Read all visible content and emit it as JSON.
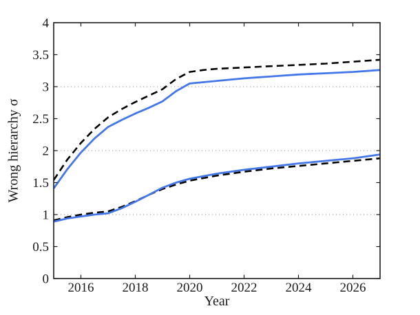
{
  "colors": {
    "background": "#ffffff",
    "axis": "#1a1a1a",
    "grid": "#a9a9a9",
    "line_blue": "#4377e8",
    "line_black": "#000000",
    "text": "#1a1a1a"
  },
  "chart_data": {
    "type": "line",
    "title": "",
    "xlabel": "Year",
    "ylabel": "Wrong hierarchy σ",
    "xlim": [
      2015,
      2027
    ],
    "ylim": [
      0,
      4
    ],
    "xticks": [
      2016,
      2018,
      2020,
      2022,
      2024,
      2026
    ],
    "yticks": [
      0,
      0.5,
      1,
      1.5,
      2,
      2.5,
      3,
      3.5,
      4
    ],
    "grid_y": [
      1,
      2,
      3
    ],
    "grid_style": "dotted",
    "legend": "none",
    "series": [
      {
        "name": "upper-dashed-black",
        "color": "#000000",
        "dash": true,
        "points": [
          [
            2015,
            1.54
          ],
          [
            2015.5,
            1.86
          ],
          [
            2016,
            2.12
          ],
          [
            2016.5,
            2.34
          ],
          [
            2017,
            2.52
          ],
          [
            2017.5,
            2.65
          ],
          [
            2018,
            2.76
          ],
          [
            2018.5,
            2.86
          ],
          [
            2019,
            2.96
          ],
          [
            2019.5,
            3.12
          ],
          [
            2020,
            3.23
          ],
          [
            2020.5,
            3.26
          ],
          [
            2021,
            3.28
          ],
          [
            2022,
            3.3
          ],
          [
            2023,
            3.32
          ],
          [
            2024,
            3.34
          ],
          [
            2025,
            3.36
          ],
          [
            2026,
            3.39
          ],
          [
            2027,
            3.42
          ]
        ]
      },
      {
        "name": "lower-dashed-black",
        "color": "#000000",
        "dash": true,
        "points": [
          [
            2015,
            0.91
          ],
          [
            2015.5,
            0.96
          ],
          [
            2016,
            1.0
          ],
          [
            2016.5,
            1.03
          ],
          [
            2017,
            1.05
          ],
          [
            2017.5,
            1.12
          ],
          [
            2018,
            1.21
          ],
          [
            2018.5,
            1.31
          ],
          [
            2019,
            1.4
          ],
          [
            2019.5,
            1.47
          ],
          [
            2020,
            1.53
          ],
          [
            2021,
            1.61
          ],
          [
            2022,
            1.67
          ],
          [
            2023,
            1.72
          ],
          [
            2024,
            1.76
          ],
          [
            2025,
            1.8
          ],
          [
            2026,
            1.84
          ],
          [
            2027,
            1.88
          ]
        ]
      },
      {
        "name": "upper-solid-blue",
        "color": "#4377e8",
        "dash": false,
        "points": [
          [
            2015,
            1.41
          ],
          [
            2015.5,
            1.71
          ],
          [
            2016,
            1.97
          ],
          [
            2016.5,
            2.19
          ],
          [
            2017,
            2.37
          ],
          [
            2017.5,
            2.48
          ],
          [
            2018,
            2.58
          ],
          [
            2018.5,
            2.67
          ],
          [
            2019,
            2.77
          ],
          [
            2019.5,
            2.93
          ],
          [
            2020,
            3.05
          ],
          [
            2020.5,
            3.07
          ],
          [
            2021,
            3.09
          ],
          [
            2022,
            3.13
          ],
          [
            2023,
            3.16
          ],
          [
            2024,
            3.19
          ],
          [
            2025,
            3.21
          ],
          [
            2026,
            3.23
          ],
          [
            2027,
            3.26
          ]
        ]
      },
      {
        "name": "lower-solid-blue",
        "color": "#4377e8",
        "dash": false,
        "points": [
          [
            2015,
            0.89
          ],
          [
            2015.5,
            0.94
          ],
          [
            2016,
            0.97
          ],
          [
            2016.5,
            1.0
          ],
          [
            2017,
            1.02
          ],
          [
            2017.5,
            1.1
          ],
          [
            2018,
            1.2
          ],
          [
            2018.5,
            1.31
          ],
          [
            2019,
            1.42
          ],
          [
            2019.5,
            1.5
          ],
          [
            2020,
            1.56
          ],
          [
            2021,
            1.64
          ],
          [
            2022,
            1.7
          ],
          [
            2023,
            1.75
          ],
          [
            2024,
            1.8
          ],
          [
            2025,
            1.84
          ],
          [
            2026,
            1.88
          ],
          [
            2027,
            1.94
          ]
        ]
      }
    ]
  }
}
